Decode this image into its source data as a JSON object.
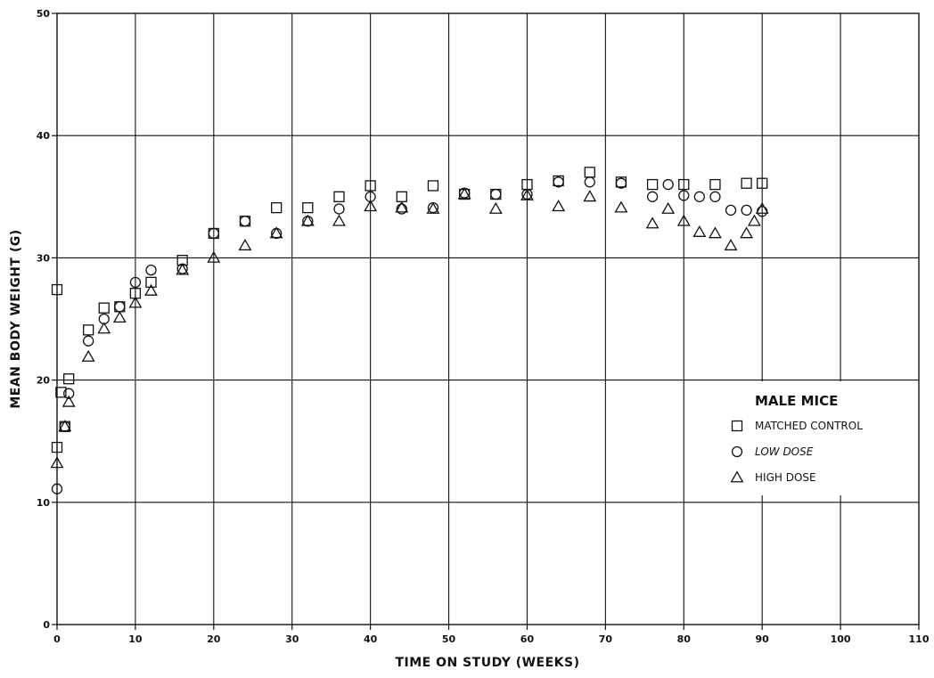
{
  "chart_data": {
    "type": "scatter",
    "title": "",
    "xlabel": "TIME ON STUDY (WEEKS)",
    "ylabel": "MEAN BODY WEIGHT (G)",
    "xlim": [
      0,
      110
    ],
    "ylim": [
      0,
      50
    ],
    "x_ticks": [
      0,
      10,
      20,
      30,
      40,
      50,
      60,
      70,
      80,
      90,
      100,
      110
    ],
    "y_ticks": [
      0,
      10,
      20,
      30,
      40,
      50
    ],
    "grid": true,
    "legend": {
      "title": "MALE MICE",
      "placement": "right",
      "entries": [
        "MATCHED CONTROL",
        "LOW DOSE",
        "HIGH DOSE"
      ]
    },
    "series": [
      {
        "name": "MATCHED CONTROL",
        "marker": "square",
        "points": [
          [
            0,
            27.4
          ],
          [
            0,
            14.5
          ],
          [
            0.5,
            19
          ],
          [
            1,
            16.2
          ],
          [
            1.5,
            20.1
          ],
          [
            4,
            24.1
          ],
          [
            6,
            25.9
          ],
          [
            8,
            26
          ],
          [
            10,
            27.1
          ],
          [
            12,
            28
          ],
          [
            16,
            29.8
          ],
          [
            20,
            32
          ],
          [
            24,
            33
          ],
          [
            28,
            34.1
          ],
          [
            32,
            34.1
          ],
          [
            36,
            35
          ],
          [
            40,
            35.9
          ],
          [
            44,
            35
          ],
          [
            48,
            35.9
          ],
          [
            52,
            35.2
          ],
          [
            56,
            35.2
          ],
          [
            60,
            36
          ],
          [
            64,
            36.3
          ],
          [
            68,
            37
          ],
          [
            72,
            36.2
          ],
          [
            76,
            36
          ],
          [
            80,
            36
          ],
          [
            84,
            36
          ],
          [
            88,
            36.1
          ],
          [
            90,
            36.1
          ]
        ]
      },
      {
        "name": "LOW DOSE",
        "marker": "circle",
        "points": [
          [
            0,
            11.1
          ],
          [
            1,
            16.2
          ],
          [
            1.5,
            18.9
          ],
          [
            4,
            23.2
          ],
          [
            6,
            25
          ],
          [
            8,
            26
          ],
          [
            10,
            28
          ],
          [
            12,
            29
          ],
          [
            16,
            29.1
          ],
          [
            20,
            32
          ],
          [
            24,
            33
          ],
          [
            28,
            32
          ],
          [
            32,
            33
          ],
          [
            36,
            34
          ],
          [
            40,
            35
          ],
          [
            44,
            34
          ],
          [
            48,
            34.1
          ],
          [
            52,
            35.3
          ],
          [
            56,
            35.2
          ],
          [
            60,
            35.2
          ],
          [
            64,
            36.2
          ],
          [
            68,
            36.2
          ],
          [
            72,
            36.1
          ],
          [
            76,
            35
          ],
          [
            78,
            36
          ],
          [
            80,
            35.1
          ],
          [
            82,
            35
          ],
          [
            84,
            35
          ],
          [
            86,
            33.9
          ],
          [
            88,
            33.9
          ],
          [
            90,
            33.8
          ]
        ]
      },
      {
        "name": "HIGH DOSE",
        "marker": "triangle",
        "points": [
          [
            0,
            13.2
          ],
          [
            1,
            16.2
          ],
          [
            1.5,
            18.2
          ],
          [
            4,
            21.9
          ],
          [
            6,
            24.2
          ],
          [
            8,
            25.1
          ],
          [
            10,
            26.3
          ],
          [
            12,
            27.3
          ],
          [
            16,
            29
          ],
          [
            20,
            30
          ],
          [
            24,
            31
          ],
          [
            28,
            32
          ],
          [
            32,
            33
          ],
          [
            36,
            33
          ],
          [
            40,
            34.2
          ],
          [
            44,
            34.1
          ],
          [
            48,
            34
          ],
          [
            52,
            35.2
          ],
          [
            56,
            34
          ],
          [
            60,
            35.1
          ],
          [
            64,
            34.2
          ],
          [
            68,
            35
          ],
          [
            72,
            34.1
          ],
          [
            76,
            32.8
          ],
          [
            78,
            34
          ],
          [
            80,
            33
          ],
          [
            82,
            32.1
          ],
          [
            84,
            32
          ],
          [
            86,
            31
          ],
          [
            88,
            32
          ],
          [
            89,
            33
          ],
          [
            90,
            34
          ]
        ]
      }
    ]
  }
}
